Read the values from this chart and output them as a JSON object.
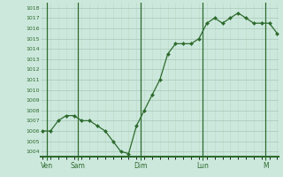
{
  "y_values": [
    1006,
    1006,
    1007,
    1007.5,
    1007.5,
    1007,
    1007,
    1006.5,
    1006,
    1005,
    1004,
    1003.8,
    1006.5,
    1008,
    1009.5,
    1011,
    1013.5,
    1014.5,
    1014.5,
    1014.5,
    1015,
    1016.5,
    1017,
    1016.5,
    1017,
    1017.5,
    1017,
    1016.5,
    1016.5,
    1016.5,
    1015.5
  ],
  "x_tick_positions": [
    0.5,
    4.5,
    12.5,
    20.5,
    28.5
  ],
  "x_tick_labels": [
    "Ven",
    "Sam",
    "Dim",
    "Lun",
    "M"
  ],
  "x_vlines": [
    0.5,
    4.5,
    12.5,
    20.5,
    28.5
  ],
  "ylim": [
    1003.5,
    1018.5
  ],
  "ytick_min": 1004,
  "ytick_max": 1018,
  "ytick_step": 1,
  "line_color": "#2d6a2d",
  "marker_color": "#2d6a2d",
  "bg_color": "#cce8dc",
  "grid_color_major": "#a8c8b8",
  "grid_color_minor": "#bcd8c8",
  "axis_color": "#2d6a2d",
  "tick_label_color": "#2d6a2d",
  "figsize": [
    3.2,
    2.0
  ],
  "dpi": 100
}
